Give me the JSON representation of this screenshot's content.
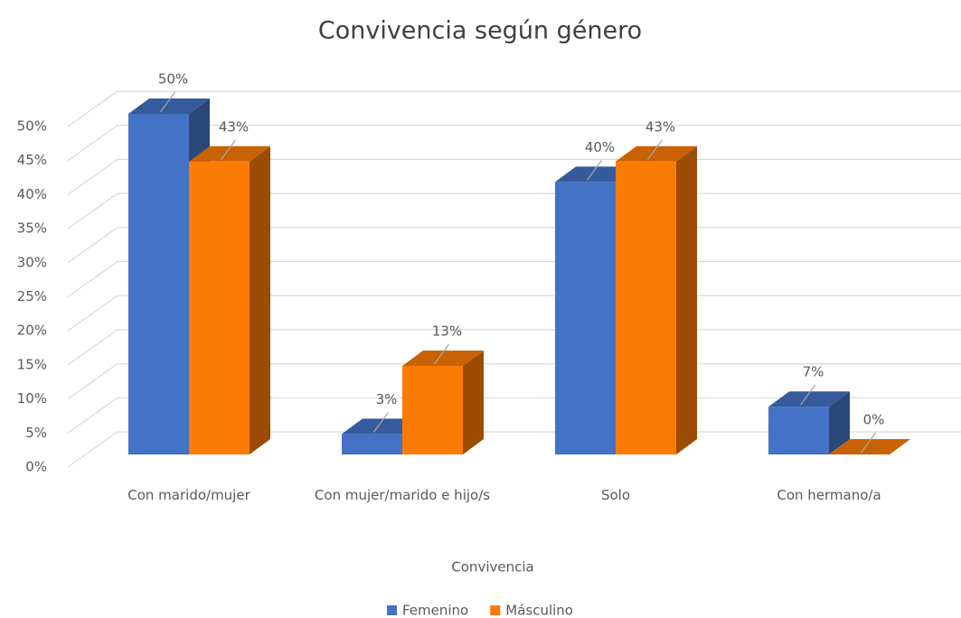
{
  "chart_data": {
    "type": "bar3d",
    "title": "Convivencia según género",
    "x_label": "Convivencia",
    "categories": [
      "Con marido/mujer",
      "Con mujer/marido e hijo/s",
      "Solo",
      "Con hermano/a"
    ],
    "series": [
      {
        "name": "Femenino",
        "color": "#4472c4",
        "values": [
          50,
          3,
          40,
          7
        ],
        "value_labels": [
          "50%",
          "3%",
          "40%",
          "7%"
        ]
      },
      {
        "name": "Másculino",
        "color": "#fb7b05",
        "values": [
          43,
          13,
          43,
          0
        ],
        "value_labels": [
          "43%",
          "13%",
          "43%",
          "0%"
        ]
      }
    ],
    "ylim": [
      0,
      50
    ],
    "yticks": [
      {
        "value": 0,
        "label": "0%"
      },
      {
        "value": 5,
        "label": "5%"
      },
      {
        "value": 10,
        "label": "10%"
      },
      {
        "value": 15,
        "label": "15%"
      },
      {
        "value": 20,
        "label": "20%"
      },
      {
        "value": 25,
        "label": "25%"
      },
      {
        "value": 30,
        "label": "30%"
      },
      {
        "value": 35,
        "label": "35%"
      },
      {
        "value": 40,
        "label": "40%"
      },
      {
        "value": 45,
        "label": "45%"
      },
      {
        "value": 50,
        "label": "50%"
      }
    ],
    "grid": true,
    "legend": "bottom"
  }
}
